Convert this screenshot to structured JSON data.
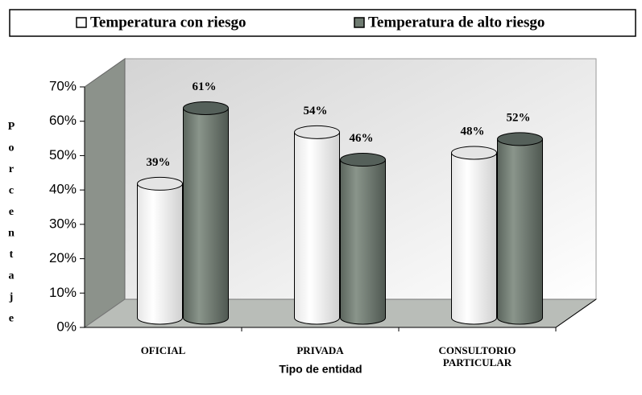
{
  "chart_data": {
    "type": "bar3d",
    "x_label": "Tipo de entidad",
    "y_label": "Porcentaje",
    "categories": [
      "OFICIAL",
      "PRIVADA",
      "CONSULTORIO PARTICULAR"
    ],
    "series": [
      {
        "name": "Temperatura con riesgo",
        "color": "#ffffff",
        "values": [
          39,
          54,
          48
        ],
        "value_labels": [
          "39%",
          "54%",
          "48%"
        ]
      },
      {
        "name": "Temperatura de alto riesgo",
        "color": "#6f7b71",
        "values": [
          61,
          46,
          52
        ],
        "value_labels": [
          "61%",
          "46%",
          "52%"
        ]
      }
    ],
    "ylim": [
      0,
      70
    ],
    "yticks": [
      {
        "value": 0,
        "label": "0%"
      },
      {
        "value": 10,
        "label": "10%"
      },
      {
        "value": 20,
        "label": "20%"
      },
      {
        "value": 30,
        "label": "30%"
      },
      {
        "value": 40,
        "label": "40%"
      },
      {
        "value": 50,
        "label": "50%"
      },
      {
        "value": 60,
        "label": "60%"
      },
      {
        "value": 70,
        "label": "70%"
      }
    ],
    "legend": "top",
    "grid": false
  }
}
